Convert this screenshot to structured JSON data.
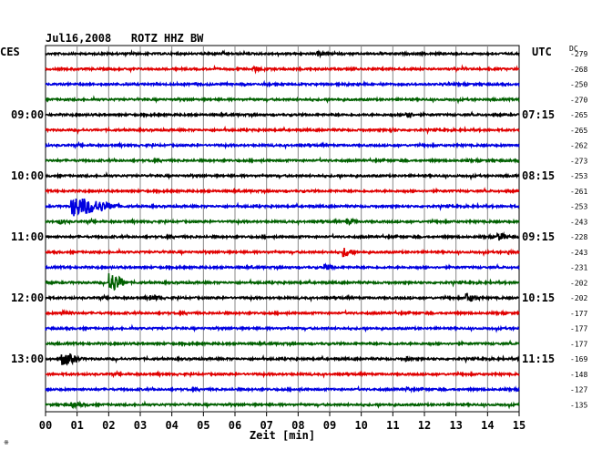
{
  "chart_data": {
    "type": "line",
    "title": "Jul16,2008   ROTZ HHZ BW",
    "left_label": "CES",
    "right_label": "UTC",
    "dc_label": "DC",
    "xlabel": "Zeit [min]",
    "x_ticks": [
      "00",
      "01",
      "02",
      "03",
      "04",
      "05",
      "06",
      "07",
      "08",
      "09",
      "10",
      "11",
      "12",
      "13",
      "14",
      "15"
    ],
    "xlim": [
      0,
      15
    ],
    "grid": true,
    "left_time_labels": [
      {
        "row": 4,
        "text": "09:00"
      },
      {
        "row": 8,
        "text": "10:00"
      },
      {
        "row": 12,
        "text": "11:00"
      },
      {
        "row": 16,
        "text": "12:00"
      },
      {
        "row": 20,
        "text": "13:00"
      }
    ],
    "right_time_labels": [
      {
        "row": 4,
        "text": "07:15"
      },
      {
        "row": 8,
        "text": "08:15"
      },
      {
        "row": 12,
        "text": "09:15"
      },
      {
        "row": 16,
        "text": "10:15"
      },
      {
        "row": 20,
        "text": "11:15"
      }
    ],
    "dc_values": [
      "279",
      "268",
      "250",
      "270",
      "265",
      "265",
      "262",
      "273",
      "253",
      "261",
      "253",
      "243",
      "228",
      "243",
      "231",
      "202",
      "202",
      "177",
      "177",
      "177",
      "169",
      "148",
      "127",
      "135"
    ],
    "trace_colors": [
      "#000000",
      "#e00000",
      "#0000e0",
      "#006000"
    ],
    "events": [
      {
        "row": 0,
        "x": 8.6,
        "amp": 3,
        "dur": 0.6
      },
      {
        "row": 1,
        "x": 6.6,
        "amp": 4,
        "dur": 0.4
      },
      {
        "row": 4,
        "x": 11.4,
        "amp": 7,
        "dur": 0.3
      },
      {
        "row": 5,
        "x": 10.9,
        "amp": 3,
        "dur": 0.3
      },
      {
        "row": 10,
        "x": 0.8,
        "amp": 12,
        "dur": 1.8
      },
      {
        "row": 11,
        "x": 0.4,
        "amp": 3,
        "dur": 0.6
      },
      {
        "row": 11,
        "x": 9.5,
        "amp": 4,
        "dur": 0.6
      },
      {
        "row": 12,
        "x": 14.3,
        "amp": 5,
        "dur": 0.6
      },
      {
        "row": 13,
        "x": 9.4,
        "amp": 6,
        "dur": 0.6
      },
      {
        "row": 13,
        "x": 14.6,
        "amp": 3,
        "dur": 0.4
      },
      {
        "row": 14,
        "x": 8.8,
        "amp": 4,
        "dur": 0.6
      },
      {
        "row": 15,
        "x": 2.0,
        "amp": 12,
        "dur": 0.7
      },
      {
        "row": 16,
        "x": 3.3,
        "amp": 4,
        "dur": 0.6
      },
      {
        "row": 16,
        "x": 13.3,
        "amp": 6,
        "dur": 0.6
      },
      {
        "row": 17,
        "x": 0.5,
        "amp": 4,
        "dur": 0.6
      },
      {
        "row": 20,
        "x": 0.5,
        "amp": 8,
        "dur": 0.8
      },
      {
        "row": 20,
        "x": 11.4,
        "amp": 3,
        "dur": 0.4
      },
      {
        "row": 22,
        "x": 11.4,
        "amp": 3,
        "dur": 0.4
      },
      {
        "row": 23,
        "x": 0.8,
        "amp": 3,
        "dur": 1.0
      }
    ]
  },
  "footer_mark": "※"
}
